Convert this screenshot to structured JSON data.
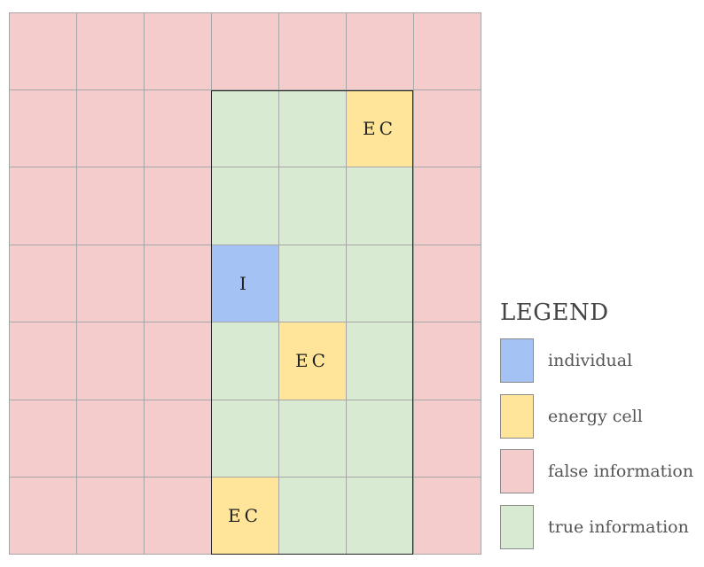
{
  "colors": {
    "individual": "#a4c2f4",
    "energy_cell": "#ffe599",
    "false_information": "#f4cccc",
    "true_information": "#d9ead3"
  },
  "grid": {
    "rows": [
      [
        "F",
        "F",
        "F",
        "F",
        "F",
        "F",
        "F"
      ],
      [
        "F",
        "F",
        "F",
        "T",
        "T",
        "E",
        "F"
      ],
      [
        "F",
        "F",
        "F",
        "T",
        "T",
        "T",
        "F"
      ],
      [
        "F",
        "F",
        "F",
        "I",
        "T",
        "T",
        "F"
      ],
      [
        "F",
        "F",
        "F",
        "T",
        "E",
        "T",
        "F"
      ],
      [
        "F",
        "F",
        "F",
        "T",
        "T",
        "T",
        "F"
      ],
      [
        "F",
        "F",
        "F",
        "E",
        "T",
        "T",
        "F"
      ]
    ],
    "codes": {
      "F": {
        "type": "false_information",
        "label": ""
      },
      "T": {
        "type": "true_information",
        "label": ""
      },
      "I": {
        "type": "individual",
        "label": "I"
      },
      "E": {
        "type": "energy_cell",
        "label": "EC"
      }
    }
  },
  "legend": {
    "title": "LEGEND",
    "items": [
      {
        "key": "individual",
        "label": "individual"
      },
      {
        "key": "energy_cell",
        "label": "energy cell"
      },
      {
        "key": "false_information",
        "label": "false information"
      },
      {
        "key": "true_information",
        "label": "true information"
      }
    ]
  }
}
